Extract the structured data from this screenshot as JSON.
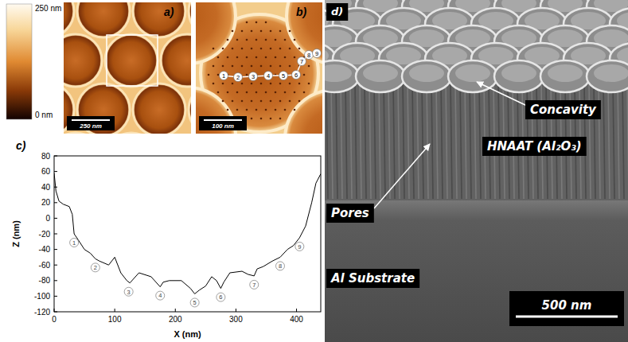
{
  "colorbar": {
    "range": [
      0,
      250
    ],
    "ticks": [
      {
        "value": 250,
        "label": "250 nm"
      },
      {
        "value": 0,
        "label": "0 nm"
      }
    ]
  },
  "panels": {
    "a": {
      "label": "a)",
      "scale_bar": "250 nm"
    },
    "b": {
      "label": "b)",
      "scale_bar": "100 nm"
    },
    "c": {
      "label": "c)"
    },
    "d": {
      "label": "d)",
      "annotations": [
        "Concavity",
        "HNAAT (Al₂O₃)",
        "Pores",
        "Al Substrate"
      ],
      "scale_bar": "500 nm"
    }
  },
  "chart_data": {
    "type": "line",
    "xlabel": "X (nm)",
    "ylabel": "Z (nm)",
    "color": "#000000",
    "x": [
      0,
      3,
      8,
      15,
      25,
      30,
      33,
      40,
      50,
      60,
      68,
      75,
      90,
      100,
      110,
      120,
      125,
      140,
      160,
      175,
      180,
      190,
      210,
      225,
      232,
      240,
      250,
      260,
      268,
      275,
      280,
      290,
      310,
      320,
      330,
      335,
      345,
      360,
      373,
      385,
      395,
      405,
      415,
      425,
      432,
      440
    ],
    "values": [
      58,
      35,
      22,
      18,
      15,
      5,
      -20,
      -28,
      -40,
      -45,
      -52,
      -55,
      -60,
      -50,
      -70,
      -80,
      -83,
      -70,
      -75,
      -88,
      -82,
      -80,
      -80,
      -90,
      -97,
      -92,
      -87,
      -75,
      -80,
      -90,
      -82,
      -70,
      -68,
      -72,
      -74,
      -65,
      -62,
      -55,
      -50,
      -40,
      -35,
      -25,
      -10,
      20,
      45,
      57
    ],
    "xlim": [
      0,
      440
    ],
    "ylim": [
      -120,
      80
    ],
    "xticks": [
      0,
      100,
      200,
      300,
      400
    ],
    "yticks": [
      -120,
      -100,
      -80,
      -60,
      -40,
      -20,
      0,
      20,
      40,
      60,
      80
    ],
    "annotations": [
      {
        "label": "1",
        "x": 33,
        "y": -20
      },
      {
        "label": "2",
        "x": 68,
        "y": -52
      },
      {
        "label": "3",
        "x": 123,
        "y": -83
      },
      {
        "label": "4",
        "x": 175,
        "y": -88
      },
      {
        "label": "5",
        "x": 232,
        "y": -97
      },
      {
        "label": "6",
        "x": 275,
        "y": -90
      },
      {
        "label": "7",
        "x": 330,
        "y": -74
      },
      {
        "label": "8",
        "x": 373,
        "y": -50
      },
      {
        "label": "9",
        "x": 405,
        "y": -25
      }
    ]
  }
}
